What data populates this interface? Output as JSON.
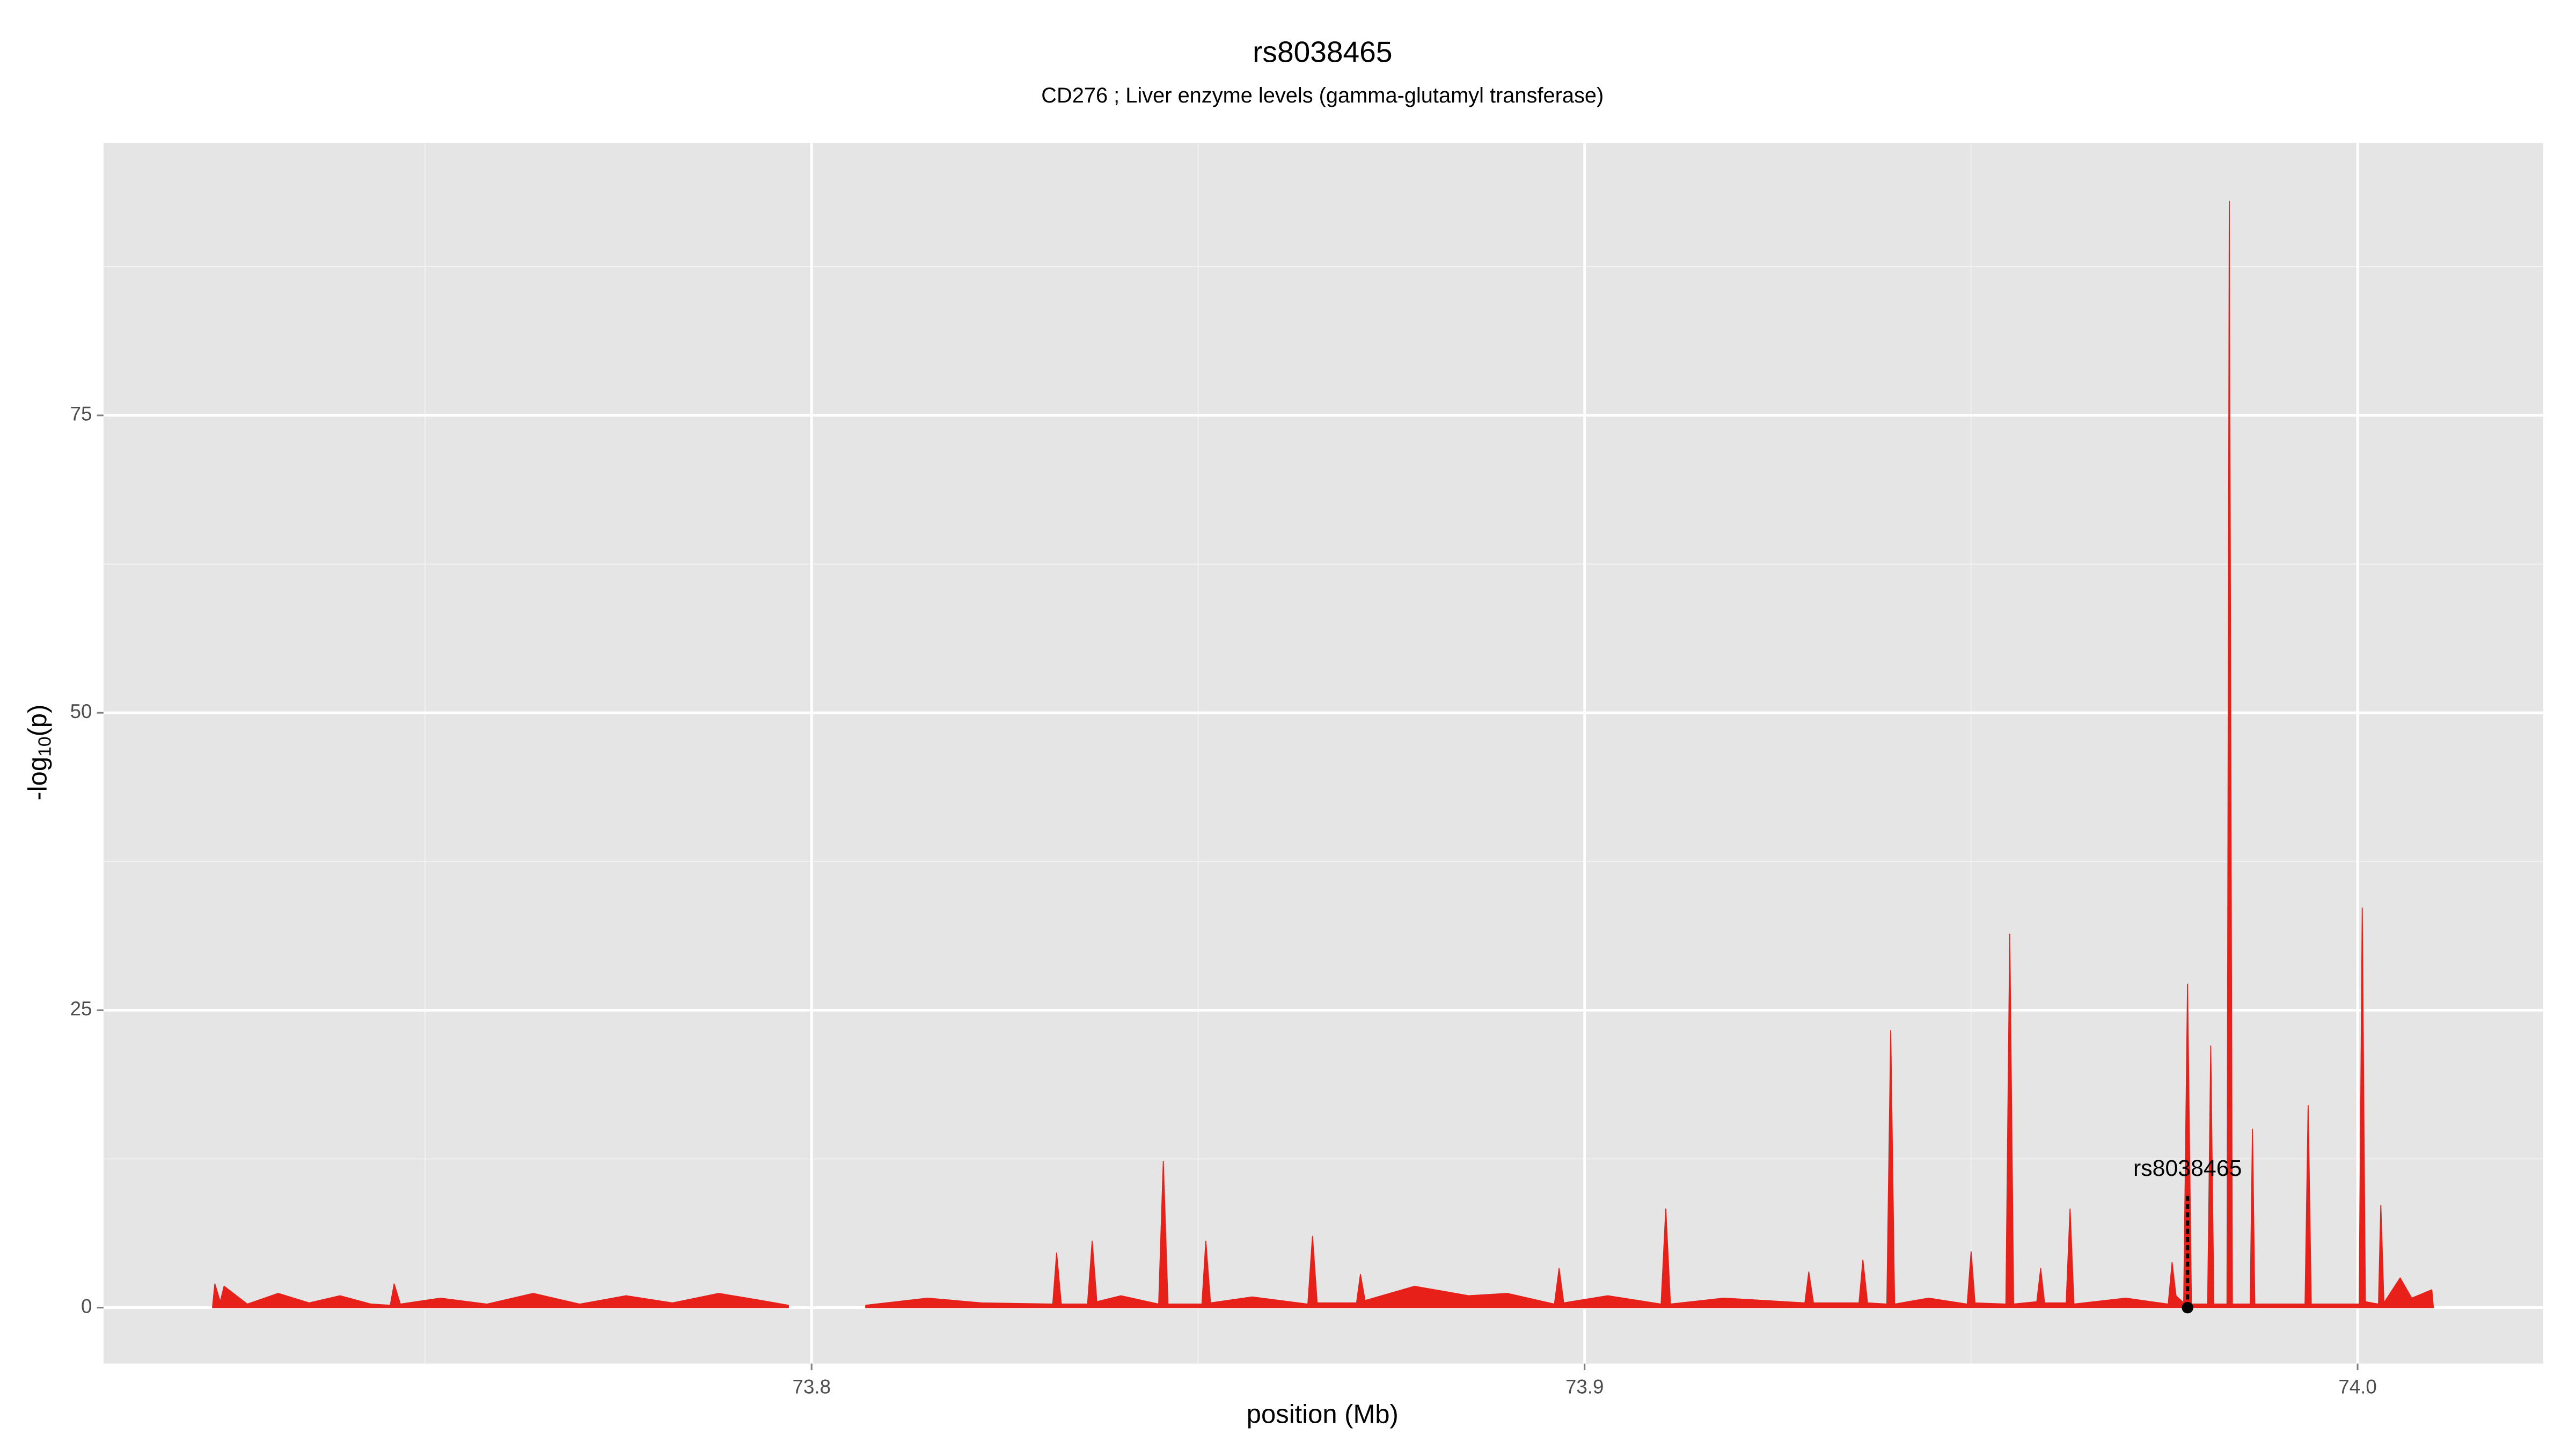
{
  "chart_data": {
    "type": "area",
    "title": "rs8038465",
    "subtitle": "CD276 ; Liver enzyme levels (gamma-glutamyl transferase)",
    "xlabel": "position (Mb)",
    "ylabel": {
      "base": "-log",
      "subscript": "10",
      "suffix": "(p)"
    },
    "color": "#e8201a",
    "grid": true,
    "xlim": [
      73.7084,
      74.024
    ],
    "ylim": [
      -4.7,
      97.9
    ],
    "xticks": [
      73.8,
      73.9,
      {
        "value": 74.0,
        "label": "74.0"
      }
    ],
    "yticks": [
      0,
      25,
      50,
      75
    ],
    "x": [
      73.7225,
      73.7228,
      73.7235,
      73.724,
      73.727,
      73.731,
      73.735,
      73.739,
      73.743,
      73.7455,
      73.746,
      73.7468,
      73.752,
      73.758,
      73.764,
      73.77,
      73.776,
      73.782,
      73.788,
      73.7935,
      73.797,
      null,
      73.807,
      73.815,
      73.822,
      73.8312,
      73.8317,
      73.8323,
      73.8357,
      73.8363,
      73.8369,
      73.84,
      73.8449,
      73.8455,
      73.8461,
      73.8505,
      73.851,
      73.8516,
      73.857,
      73.8642,
      73.8648,
      73.8654,
      73.8705,
      73.871,
      73.8716,
      73.878,
      73.885,
      73.89,
      73.8961,
      73.8967,
      73.8973,
      73.903,
      73.9099,
      73.9105,
      73.9111,
      73.918,
      73.9285,
      73.929,
      73.9296,
      73.9355,
      73.936,
      73.9366,
      73.9391,
      73.9396,
      73.9401,
      73.9445,
      73.9495,
      73.95,
      73.9505,
      73.9545,
      73.955,
      73.9555,
      73.9585,
      73.959,
      73.9595,
      73.9623,
      73.9628,
      73.9633,
      73.97,
      73.9755,
      73.976,
      73.9765,
      73.9775,
      73.978,
      73.9785,
      73.9806,
      73.981,
      73.9814,
      73.9831,
      73.9834,
      73.9838,
      73.9861,
      73.9864,
      73.9867,
      73.9932,
      73.9936,
      73.994,
      74.0002,
      74.0006,
      74.001,
      74.0027,
      74.003,
      74.0034,
      74.0055,
      74.007,
      74.0096,
      74.0098
    ],
    "values": [
      0,
      2.0,
      0.5,
      1.8,
      0.3,
      1.2,
      0.4,
      1.0,
      0.3,
      0.2,
      2.0,
      0.3,
      0.8,
      0.3,
      1.2,
      0.3,
      1.0,
      0.4,
      1.2,
      0.6,
      0.2,
      null,
      0.2,
      0.8,
      0.4,
      0.3,
      4.6,
      0.3,
      0.3,
      5.6,
      0.5,
      1.0,
      0.3,
      12.3,
      0.3,
      0.3,
      5.6,
      0.4,
      0.9,
      0.3,
      6.0,
      0.4,
      0.4,
      2.8,
      0.6,
      1.8,
      1.0,
      1.2,
      0.3,
      3.3,
      0.4,
      1.0,
      0.3,
      8.3,
      0.3,
      0.8,
      0.4,
      3.0,
      0.4,
      0.4,
      4.0,
      0.4,
      0.3,
      23.3,
      0.3,
      0.8,
      0.3,
      4.7,
      0.4,
      0.3,
      31.4,
      0.3,
      0.5,
      3.3,
      0.4,
      0.4,
      8.3,
      0.3,
      0.8,
      0.3,
      3.8,
      1.0,
      0.4,
      27.2,
      0.3,
      0.3,
      22.0,
      0.3,
      0.3,
      93.0,
      0.3,
      0.3,
      15.0,
      0.3,
      0.3,
      17.0,
      0.3,
      0.3,
      33.6,
      0.5,
      0.3,
      8.6,
      0.4,
      2.5,
      0.8,
      1.5,
      0
    ],
    "annotation": {
      "label": "rs8038465",
      "x": 73.978,
      "y": 0
    }
  }
}
